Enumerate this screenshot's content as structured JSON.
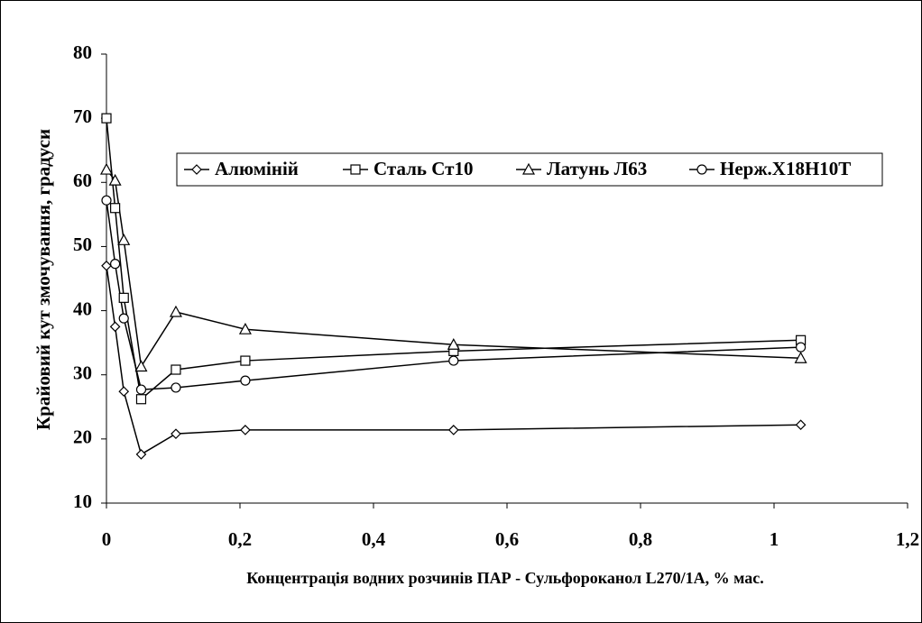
{
  "chart_data": {
    "type": "line",
    "x_label": "Концентрація водних розчинів ПАР - Сульфороканол L270/1А, % мас.",
    "y_label": "Крайовий кут змочування, градуси",
    "x": [
      0,
      0.013,
      0.026,
      0.052,
      0.104,
      0.208,
      0.52,
      1.04
    ],
    "series": [
      {
        "name": "Алюміній",
        "color": "#000000",
        "marker": "diamond",
        "values": [
          47,
          37.5,
          27.4,
          17.6,
          20.8,
          21.4,
          21.4,
          22.2
        ]
      },
      {
        "name": "Сталь Ст10",
        "color": "#000000",
        "marker": "square",
        "values": [
          70,
          56,
          42,
          26.2,
          30.8,
          32.2,
          33.7,
          35.4
        ]
      },
      {
        "name": "Латунь Л63",
        "color": "#000000",
        "marker": "triangle",
        "values": [
          62,
          60.3,
          51,
          31.3,
          39.8,
          37.1,
          34.7,
          32.6
        ]
      },
      {
        "name": "Нерж.Х18Н10Т",
        "color": "#000000",
        "marker": "circle",
        "values": [
          57.2,
          47.3,
          38.8,
          27.7,
          28,
          29.1,
          32.2,
          34.3
        ]
      }
    ],
    "xlim": [
      0,
      1.2
    ],
    "xticks": [
      0,
      {
        "value": 0.2,
        "label": "0,2"
      },
      {
        "value": 0.4,
        "label": "0,4"
      },
      {
        "value": 0.6,
        "label": "0,6"
      },
      {
        "value": 0.8,
        "label": "0,8"
      },
      1,
      {
        "value": 1.2,
        "label": "1,2"
      }
    ],
    "ylim": [
      10,
      80
    ],
    "yticks": [
      10,
      20,
      30,
      40,
      50,
      60,
      70,
      80
    ],
    "grid": false,
    "legend": "top-right"
  }
}
